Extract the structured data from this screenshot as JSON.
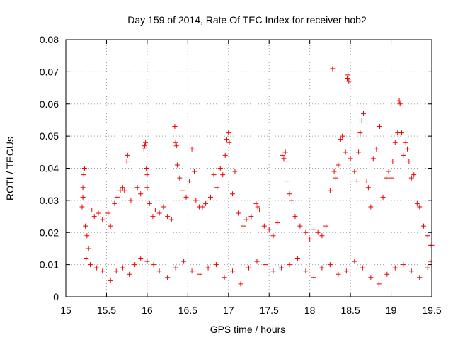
{
  "chart_data": {
    "type": "scatter",
    "title": "Day 159 of 2014, Rate Of TEC Index for receiver hob2",
    "xlabel": "GPS time / hours",
    "ylabel": "ROTI / TECUs",
    "xlim": [
      15,
      19.5
    ],
    "ylim": [
      0,
      0.08
    ],
    "x_ticks": [
      "15",
      "15.5",
      "16",
      "16.5",
      "17",
      "17.5",
      "18",
      "18.5",
      "19",
      "19.5"
    ],
    "y_ticks": [
      "0",
      "0.01",
      "0.02",
      "0.03",
      "0.04",
      "0.05",
      "0.06",
      "0.07",
      "0.08"
    ],
    "grid": true,
    "marker": "+",
    "series_color": "#ee0000",
    "series": [
      {
        "name": "ROTI",
        "points": [
          [
            15.22,
            0.038
          ],
          [
            15.23,
            0.04
          ],
          [
            15.21,
            0.034
          ],
          [
            15.2,
            0.028
          ],
          [
            15.21,
            0.031
          ],
          [
            15.24,
            0.022
          ],
          [
            15.26,
            0.019
          ],
          [
            15.28,
            0.015
          ],
          [
            15.32,
            0.027
          ],
          [
            15.35,
            0.025
          ],
          [
            15.4,
            0.026
          ],
          [
            15.45,
            0.024
          ],
          [
            15.52,
            0.026
          ],
          [
            15.55,
            0.022
          ],
          [
            15.6,
            0.029
          ],
          [
            15.63,
            0.031
          ],
          [
            15.67,
            0.033
          ],
          [
            15.7,
            0.034
          ],
          [
            15.72,
            0.033
          ],
          [
            15.75,
            0.042
          ],
          [
            15.76,
            0.044
          ],
          [
            15.8,
            0.03
          ],
          [
            15.84,
            0.027
          ],
          [
            15.88,
            0.034
          ],
          [
            15.92,
            0.032
          ],
          [
            15.96,
            0.046
          ],
          [
            15.97,
            0.047
          ],
          [
            15.98,
            0.048
          ],
          [
            15.99,
            0.04
          ],
          [
            16.0,
            0.038
          ],
          [
            16.0,
            0.034
          ],
          [
            16.03,
            0.029
          ],
          [
            16.07,
            0.025
          ],
          [
            16.1,
            0.027
          ],
          [
            16.15,
            0.026
          ],
          [
            16.2,
            0.028
          ],
          [
            16.25,
            0.025
          ],
          [
            16.3,
            0.024
          ],
          [
            16.34,
            0.053
          ],
          [
            16.35,
            0.048
          ],
          [
            16.36,
            0.047
          ],
          [
            16.37,
            0.041
          ],
          [
            16.4,
            0.037
          ],
          [
            16.44,
            0.033
          ],
          [
            16.48,
            0.031
          ],
          [
            16.52,
            0.036
          ],
          [
            16.55,
            0.046
          ],
          [
            16.58,
            0.039
          ],
          [
            16.6,
            0.03
          ],
          [
            16.64,
            0.028
          ],
          [
            16.68,
            0.028
          ],
          [
            16.72,
            0.029
          ],
          [
            16.78,
            0.031
          ],
          [
            16.82,
            0.038
          ],
          [
            16.86,
            0.034
          ],
          [
            16.9,
            0.04
          ],
          [
            16.93,
            0.038
          ],
          [
            16.96,
            0.044
          ],
          [
            16.98,
            0.049
          ],
          [
            17.0,
            0.051
          ],
          [
            17.01,
            0.048
          ],
          [
            17.05,
            0.032
          ],
          [
            17.08,
            0.039
          ],
          [
            17.12,
            0.026
          ],
          [
            17.18,
            0.022
          ],
          [
            17.22,
            0.024
          ],
          [
            17.28,
            0.025
          ],
          [
            17.34,
            0.029
          ],
          [
            17.36,
            0.028
          ],
          [
            17.38,
            0.027
          ],
          [
            17.44,
            0.022
          ],
          [
            17.5,
            0.021
          ],
          [
            17.55,
            0.019
          ],
          [
            17.6,
            0.023
          ],
          [
            17.66,
            0.044
          ],
          [
            17.68,
            0.043
          ],
          [
            17.7,
            0.045
          ],
          [
            17.72,
            0.042
          ],
          [
            17.72,
            0.036
          ],
          [
            17.75,
            0.032
          ],
          [
            17.78,
            0.03
          ],
          [
            17.82,
            0.025
          ],
          [
            17.88,
            0.022
          ],
          [
            17.95,
            0.02
          ],
          [
            18.0,
            0.018
          ],
          [
            18.05,
            0.021
          ],
          [
            18.1,
            0.02
          ],
          [
            18.15,
            0.019
          ],
          [
            18.2,
            0.022
          ],
          [
            18.25,
            0.033
          ],
          [
            18.28,
            0.071
          ],
          [
            18.3,
            0.039
          ],
          [
            18.32,
            0.037
          ],
          [
            18.35,
            0.041
          ],
          [
            18.38,
            0.049
          ],
          [
            18.4,
            0.05
          ],
          [
            18.44,
            0.045
          ],
          [
            18.46,
            0.068
          ],
          [
            18.47,
            0.069
          ],
          [
            18.48,
            0.067
          ],
          [
            18.5,
            0.043
          ],
          [
            18.55,
            0.039
          ],
          [
            18.58,
            0.036
          ],
          [
            18.6,
            0.045
          ],
          [
            18.62,
            0.051
          ],
          [
            18.64,
            0.055
          ],
          [
            18.66,
            0.057
          ],
          [
            18.7,
            0.036
          ],
          [
            18.72,
            0.034
          ],
          [
            18.75,
            0.028
          ],
          [
            18.78,
            0.043
          ],
          [
            18.82,
            0.046
          ],
          [
            18.86,
            0.053
          ],
          [
            18.9,
            0.031
          ],
          [
            18.94,
            0.037
          ],
          [
            18.97,
            0.039
          ],
          [
            19.0,
            0.037
          ],
          [
            19.02,
            0.042
          ],
          [
            19.05,
            0.048
          ],
          [
            19.08,
            0.051
          ],
          [
            19.1,
            0.061
          ],
          [
            19.11,
            0.06
          ],
          [
            19.13,
            0.051
          ],
          [
            19.15,
            0.044
          ],
          [
            19.18,
            0.048
          ],
          [
            19.2,
            0.046
          ],
          [
            19.22,
            0.042
          ],
          [
            19.25,
            0.037
          ],
          [
            19.28,
            0.038
          ],
          [
            19.32,
            0.029
          ],
          [
            19.35,
            0.028
          ],
          [
            19.4,
            0.022
          ],
          [
            19.45,
            0.019
          ],
          [
            19.48,
            0.016
          ],
          [
            19.5,
            0.016
          ],
          [
            15.25,
            0.012
          ],
          [
            15.3,
            0.01
          ],
          [
            15.38,
            0.009
          ],
          [
            15.45,
            0.008
          ],
          [
            15.55,
            0.005
          ],
          [
            15.62,
            0.008
          ],
          [
            15.7,
            0.009
          ],
          [
            15.78,
            0.007
          ],
          [
            15.85,
            0.01
          ],
          [
            15.92,
            0.012
          ],
          [
            16.0,
            0.011
          ],
          [
            16.08,
            0.01
          ],
          [
            16.15,
            0.008
          ],
          [
            16.25,
            0.006
          ],
          [
            16.35,
            0.009
          ],
          [
            16.45,
            0.011
          ],
          [
            16.55,
            0.008
          ],
          [
            16.65,
            0.007
          ],
          [
            16.75,
            0.009
          ],
          [
            16.85,
            0.01
          ],
          [
            16.95,
            0.006
          ],
          [
            17.05,
            0.008
          ],
          [
            17.15,
            0.004
          ],
          [
            17.25,
            0.009
          ],
          [
            17.35,
            0.011
          ],
          [
            17.45,
            0.01
          ],
          [
            17.55,
            0.008
          ],
          [
            17.65,
            0.009
          ],
          [
            17.75,
            0.01
          ],
          [
            17.85,
            0.012
          ],
          [
            17.95,
            0.008
          ],
          [
            18.05,
            0.006
          ],
          [
            18.15,
            0.009
          ],
          [
            18.25,
            0.01
          ],
          [
            18.35,
            0.007
          ],
          [
            18.45,
            0.008
          ],
          [
            18.55,
            0.011
          ],
          [
            18.65,
            0.009
          ],
          [
            18.75,
            0.006
          ],
          [
            18.85,
            0.004
          ],
          [
            18.95,
            0.007
          ],
          [
            19.05,
            0.009
          ],
          [
            19.15,
            0.01
          ],
          [
            19.25,
            0.008
          ],
          [
            19.35,
            0.006
          ],
          [
            19.45,
            0.009
          ],
          [
            19.48,
            0.011
          ]
        ]
      }
    ]
  }
}
